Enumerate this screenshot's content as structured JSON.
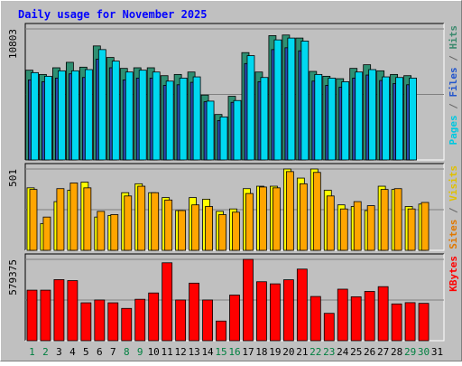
{
  "chart_data": {
    "type": "bar",
    "title": "Daily usage for November 2025",
    "x": [
      "1",
      "2",
      "3",
      "4",
      "5",
      "6",
      "7",
      "8",
      "9",
      "10",
      "11",
      "12",
      "13",
      "14",
      "15",
      "16",
      "17",
      "18",
      "19",
      "20",
      "21",
      "22",
      "23",
      "24",
      "25",
      "26",
      "27",
      "28",
      "29",
      "30",
      "31"
    ],
    "weekend_days": [
      "1",
      "2",
      "8",
      "9",
      "15",
      "16",
      "22",
      "23",
      "29",
      "30"
    ],
    "panels": [
      {
        "id": "traffic",
        "ylabel_parts": [
          {
            "text": "Pages",
            "color": "#00c8e0"
          },
          {
            "text": " / ",
            "color": "#666666"
          },
          {
            "text": "Files",
            "color": "#2255cc"
          },
          {
            "text": " / ",
            "color": "#666666"
          },
          {
            "text": "Hits",
            "color": "#3c8a6e"
          }
        ],
        "max_tick_label": "10803",
        "ylim": [
          0,
          10803
        ],
        "series": [
          {
            "name": "Hits",
            "color": "#2f8f72",
            "values": [
              7400,
              7050,
              7600,
              8050,
              7650,
              9400,
              8450,
              7550,
              7600,
              7600,
              6950,
              7050,
              7250,
              5350,
              3750,
              5250,
              8850,
              7250,
              10250,
              10300,
              10050,
              7300,
              6900,
              6700,
              7550,
              7850,
              7350,
              7050,
              6950,
              0,
              0
            ]
          },
          {
            "name": "Files",
            "color": "#2a4bb0",
            "values": [
              6600,
              6450,
              6750,
              7100,
              6800,
              8300,
              7600,
              6600,
              6750,
              6750,
              6150,
              6200,
              6400,
              4800,
              3250,
              4750,
              7950,
              6450,
              9100,
              9250,
              9000,
              6500,
              6150,
              6000,
              6750,
              7000,
              6550,
              6300,
              6200,
              0,
              0
            ]
          },
          {
            "name": "Pages",
            "color": "#00d8f0",
            "values": [
              7200,
              6900,
              7350,
              7350,
              7450,
              9100,
              8150,
              7250,
              7400,
              7250,
              6500,
              6750,
              6850,
              4850,
              3550,
              4900,
              8600,
              6800,
              9900,
              10050,
              9800,
              7050,
              6750,
              6450,
              7250,
              7450,
              6850,
              6800,
              6750,
              0,
              0
            ]
          }
        ]
      },
      {
        "id": "visitors",
        "ylabel_parts": [
          {
            "text": "Sites",
            "color": "#e07800"
          },
          {
            "text": " / ",
            "color": "#666666"
          },
          {
            "text": "Visits",
            "color": "#e0c000"
          }
        ],
        "max_tick_label": "501",
        "ylim": [
          0,
          501
        ],
        "series": [
          {
            "name": "Visits",
            "color": "#ffff00",
            "values": [
              385,
              165,
              300,
              370,
              420,
              205,
              215,
              355,
              410,
              355,
              325,
              245,
              325,
              315,
              240,
              255,
              380,
              395,
              395,
              501,
              445,
              501,
              370,
              280,
              270,
              245,
              395,
              375,
              270,
              285,
              0
            ]
          },
          {
            "name": "Sites",
            "color": "#ffa500",
            "values": [
              375,
              205,
              380,
              415,
              385,
              240,
              220,
              335,
              395,
              355,
              310,
              245,
              280,
              270,
              220,
              235,
              350,
              390,
              385,
              485,
              410,
              480,
              335,
              255,
              300,
              275,
              375,
              380,
              255,
              295,
              0
            ]
          }
        ]
      },
      {
        "id": "kbytes",
        "ylabel_parts": [
          {
            "text": "KBytes",
            "color": "#ff0000"
          }
        ],
        "max_tick_label": "579375",
        "ylim": [
          0,
          579375
        ],
        "series": [
          {
            "name": "KBytes",
            "color": "#ff0000",
            "values": [
              360000,
              360000,
              435000,
              428000,
              270000,
              290000,
              270000,
              230000,
              295000,
              340000,
              555000,
              290000,
              410000,
              290000,
              140000,
              325000,
              579375,
              420000,
              405000,
              434000,
              510000,
              315000,
              195000,
              367000,
              313000,
              351000,
              385000,
              262000,
              271000,
              266000,
              0
            ]
          }
        ]
      }
    ]
  }
}
